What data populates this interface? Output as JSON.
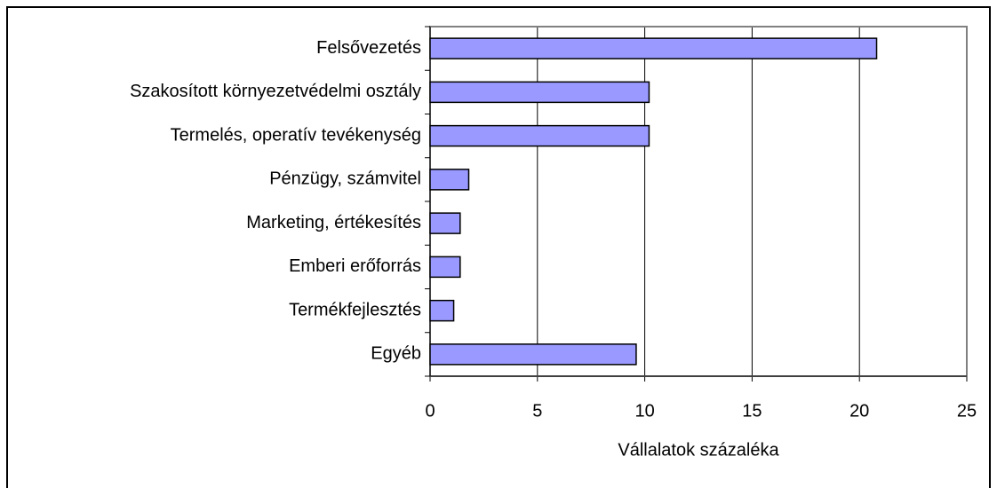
{
  "chart_data": {
    "type": "bar",
    "orientation": "horizontal",
    "categories": [
      "Felsővezetés",
      "Szakosított környezetvédelmi osztály",
      "Termelés, operatív tevékenység",
      "Pénzügy, számvitel",
      "Marketing, értékesítés",
      "Emberi erőforrás",
      "Termékfejlesztés",
      "Egyéb"
    ],
    "values": [
      20.8,
      10.2,
      10.2,
      1.8,
      1.4,
      1.4,
      1.1,
      9.6
    ],
    "color": "#9999ff",
    "xlabel": "Vállalatok százaléka",
    "xlim": [
      0,
      25
    ],
    "xticks": [
      0,
      5,
      10,
      15,
      20,
      25
    ],
    "grid": true
  }
}
